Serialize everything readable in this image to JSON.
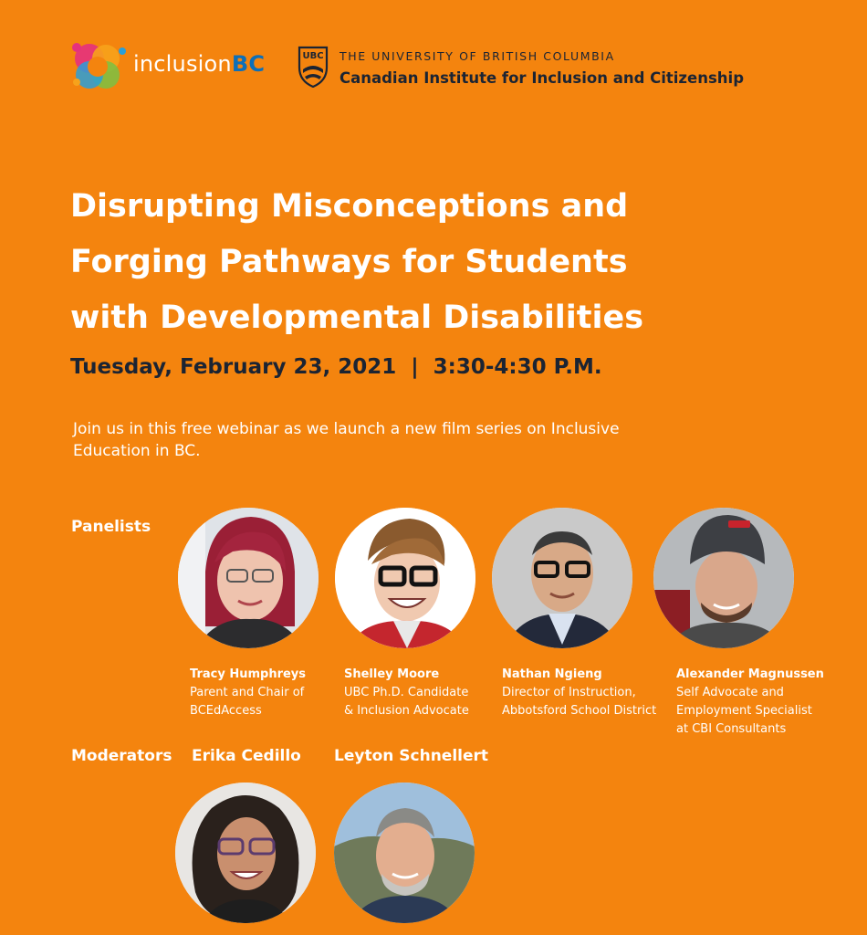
{
  "header": {
    "inclusion_logo": {
      "prefix": "inclusion",
      "suffix": "BC",
      "icon": "inclusionbc-circle-logo-icon"
    },
    "ubc": {
      "crest_text": "UBC",
      "university": "THE UNIVERSITY OF BRITISH COLUMBIA",
      "institute": "Canadian Institute for Inclusion and Citizenship"
    }
  },
  "event": {
    "title_lines": [
      "Disrupting Misconceptions and",
      "Forging Pathways for Students",
      "with Developmental Disabilities"
    ],
    "date_line": "Tuesday, February 23, 2021  |  3:30-4:30 P.M.",
    "intro_lines": [
      "Join us in this free webinar as we launch a new film series on Inclusive",
      "Education in BC."
    ]
  },
  "panelists": {
    "label": "Panelists",
    "people": [
      {
        "name": "Tracy Humphreys",
        "role_lines": [
          "Parent and Chair of",
          "BCEdAccess"
        ]
      },
      {
        "name": "Shelley Moore",
        "role_lines": [
          "UBC Ph.D. Candidate",
          "& Inclusion Advocate"
        ]
      },
      {
        "name": "Nathan Ngieng",
        "role_lines": [
          "Director of Instruction,",
          "Abbotsford School District"
        ]
      },
      {
        "name": "Alexander Magnussen",
        "role_lines": [
          "Self Advocate and",
          "Employment Specialist",
          "at CBI Consultants"
        ]
      }
    ]
  },
  "moderators": {
    "label": "Moderators",
    "people": [
      {
        "name": "Erika Cedillo"
      },
      {
        "name": "Leyton Schnellert"
      }
    ]
  },
  "colors": {
    "background": "#f4840e",
    "navy": "#1b2433",
    "white": "#ffffff",
    "inclusion_blue": "#0d6fb8"
  }
}
